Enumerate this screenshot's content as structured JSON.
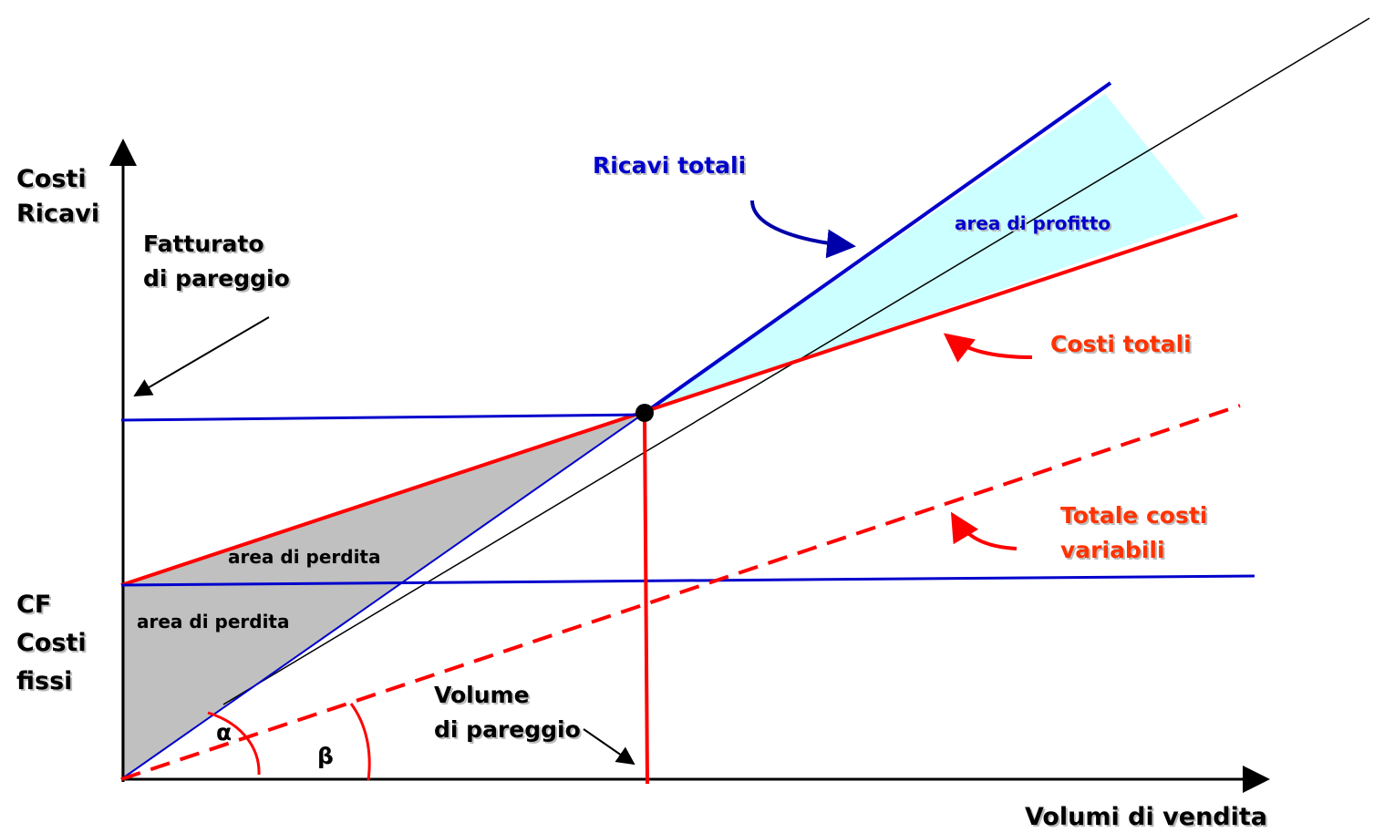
{
  "y_axis_label": [
    "Costi",
    "Ricavi"
  ],
  "x_axis_label": "Volumi di vendita",
  "fixed_costs_label": [
    "CF",
    "Costi",
    "fissi"
  ],
  "break_even_revenue": [
    "Fatturato",
    "di pareggio"
  ],
  "break_even_volume": [
    "Volume",
    "di pareggio"
  ],
  "total_revenue": "Ricavi totali",
  "total_costs": "Costi totali",
  "variable_costs": [
    "Totale costi",
    "variabili"
  ],
  "profit_area": "area di profitto",
  "loss_area_upper": "area di perdita",
  "loss_area_lower": "area di perdita",
  "angle_alpha": "α",
  "angle_beta": "β"
}
